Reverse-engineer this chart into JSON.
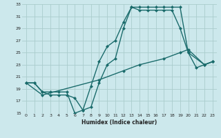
{
  "xlabel": "Humidex (Indice chaleur)",
  "bg_color": "#cce8ec",
  "grid_color": "#aacccc",
  "line_color": "#1a6b6b",
  "xlim": [
    -0.5,
    23.5
  ],
  "ylim": [
    15,
    33
  ],
  "xticks": [
    0,
    1,
    2,
    3,
    4,
    5,
    6,
    7,
    8,
    9,
    10,
    11,
    12,
    13,
    14,
    15,
    16,
    17,
    18,
    19,
    20,
    21,
    22,
    23
  ],
  "yticks": [
    15,
    17,
    19,
    21,
    23,
    25,
    27,
    29,
    31,
    33
  ],
  "line1_x": [
    0,
    1,
    2,
    3,
    4,
    5,
    6,
    7,
    8,
    9,
    10,
    11,
    12,
    13,
    14,
    15,
    16,
    17,
    18,
    19,
    20,
    21,
    22,
    23
  ],
  "line1_y": [
    20,
    20,
    18.5,
    18,
    18,
    18,
    17.5,
    15.5,
    16,
    20,
    23,
    24,
    29,
    32.5,
    32,
    32,
    32,
    32,
    32,
    29,
    25,
    22.5,
    23,
    23.5
  ],
  "line2_x": [
    0,
    1,
    2,
    3,
    4,
    5,
    6,
    7,
    8,
    9,
    10,
    11,
    12,
    13,
    14,
    15,
    16,
    17,
    18,
    19,
    20,
    22,
    23
  ],
  "line2_y": [
    20,
    20,
    18.5,
    18.5,
    18.5,
    18.5,
    15,
    15.5,
    19.5,
    23.5,
    26,
    27,
    30,
    32.5,
    32.5,
    32.5,
    32.5,
    32.5,
    32.5,
    32.5,
    25,
    23,
    23.5
  ],
  "line3_x": [
    0,
    2,
    9,
    12,
    14,
    17,
    19,
    20,
    22,
    23
  ],
  "line3_y": [
    20,
    18,
    20.5,
    22,
    23,
    24,
    25,
    25.5,
    23,
    23.5
  ],
  "marker_size": 2.5,
  "line_width": 1.0
}
